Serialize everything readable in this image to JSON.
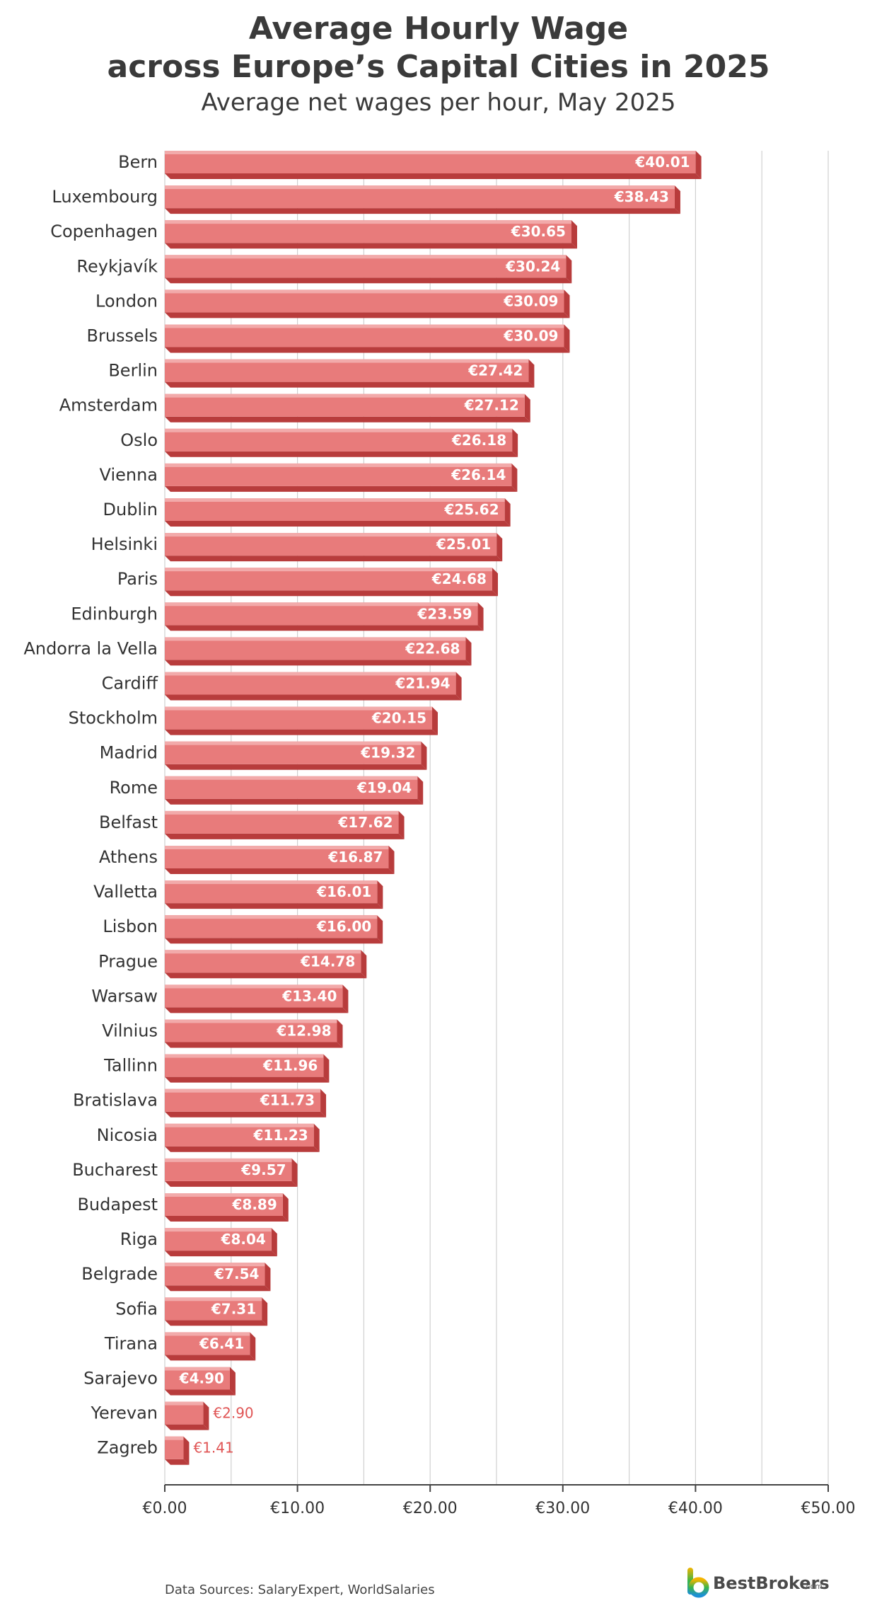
{
  "header": {
    "title_line1": "Average Hourly Wage",
    "title_line2": "across Europe’s Capital Cities in 2025",
    "subtitle": "Average net wages per hour, May 2025"
  },
  "footer": {
    "sources": "Data Sources: SalaryExpert, WorldSalaries",
    "logo_text": "BestBrokers",
    "logo_suffix": ".com"
  },
  "colors": {
    "bar_front": "#e87b7b",
    "bar_top": "#f2aaaa",
    "bar_side": "#b83c3c",
    "grid": "#d0d0d0",
    "axis": "#444444",
    "outside_label": "#e05555"
  },
  "chart_data": {
    "type": "bar",
    "orientation": "horizontal",
    "categories": [
      "Bern",
      "Luxembourg",
      "Copenhagen",
      "Reykjavík",
      "London",
      "Brussels",
      "Berlin",
      "Amsterdam",
      "Oslo",
      "Vienna",
      "Dublin",
      "Helsinki",
      "Paris",
      "Edinburgh",
      "Andorra la Vella",
      "Cardiff",
      "Stockholm",
      "Madrid",
      "Rome",
      "Belfast",
      "Athens",
      "Valletta",
      "Lisbon",
      "Prague",
      "Warsaw",
      "Vilnius",
      "Tallinn",
      "Bratislava",
      "Nicosia",
      "Bucharest",
      "Budapest",
      "Riga",
      "Belgrade",
      "Sofia",
      "Tirana",
      "Sarajevo",
      "Yerevan",
      "Zagreb"
    ],
    "values": [
      40.01,
      38.43,
      30.65,
      30.24,
      30.09,
      30.09,
      27.42,
      27.12,
      26.18,
      26.14,
      25.62,
      25.01,
      24.68,
      23.59,
      22.68,
      21.94,
      20.15,
      19.32,
      19.04,
      17.62,
      16.87,
      16.01,
      16.0,
      14.78,
      13.4,
      12.98,
      11.96,
      11.73,
      11.23,
      9.57,
      8.89,
      8.04,
      7.54,
      7.31,
      6.41,
      4.9,
      2.9,
      1.41
    ],
    "data_labels": [
      "€40.01",
      "€38.43",
      "€30.65",
      "€30.24",
      "€30.09",
      "€30.09",
      "€27.42",
      "€27.12",
      "€26.18",
      "€26.14",
      "€25.62",
      "€25.01",
      "€24.68",
      "€23.59",
      "€22.68",
      "€21.94",
      "€20.15",
      "€19.32",
      "€19.04",
      "€17.62",
      "€16.87",
      "€16.01",
      "€16.00",
      "€14.78",
      "€13.40",
      "€12.98",
      "€11.96",
      "€11.73",
      "€11.23",
      "€9.57",
      "€8.89",
      "€8.04",
      "€7.54",
      "€7.31",
      "€6.41",
      "€4.90",
      "€2.90",
      "€1.41"
    ],
    "xlim": [
      0,
      50
    ],
    "xticks": [
      0,
      10,
      20,
      30,
      40,
      50
    ],
    "xtick_labels": [
      "€0.00",
      "€10.00",
      "€20.00",
      "€30.00",
      "€40.00",
      "€50.00"
    ],
    "grid": true,
    "legend": "none"
  }
}
